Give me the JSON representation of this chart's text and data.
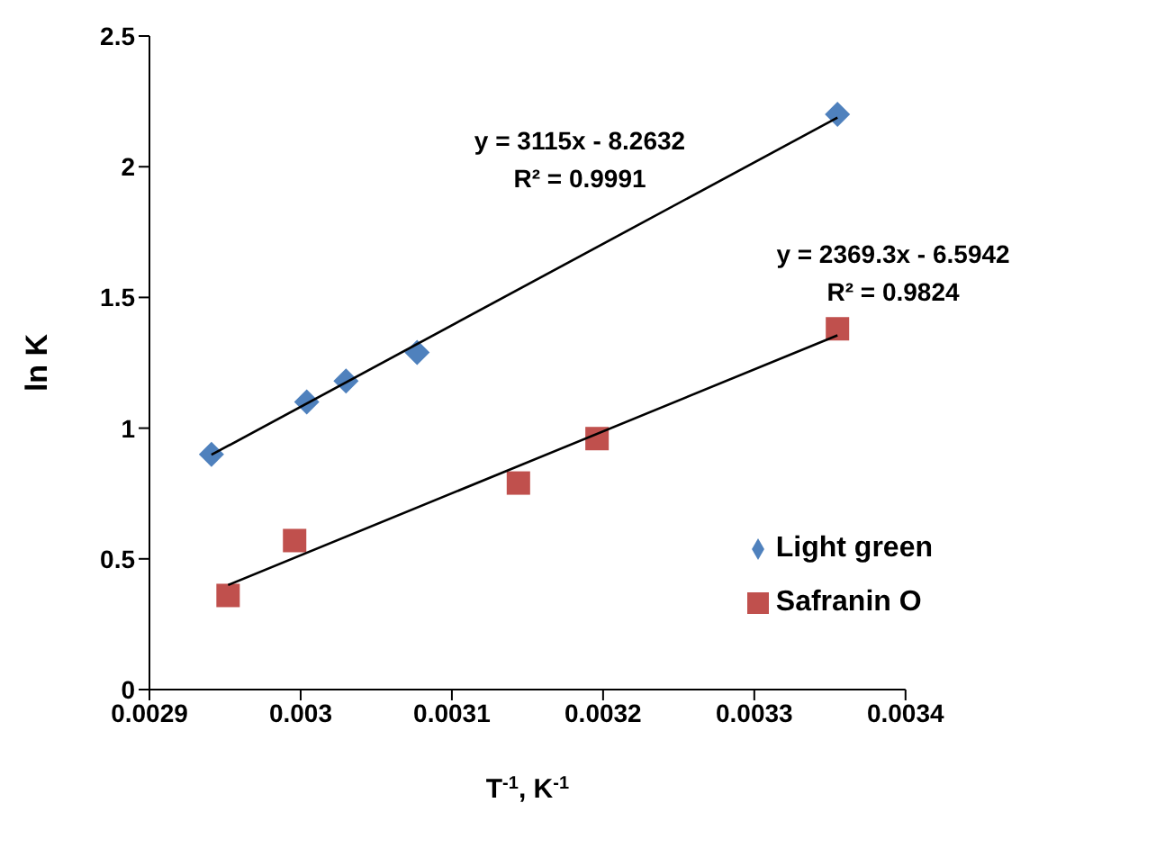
{
  "chart_data": {
    "type": "scatter",
    "xlabel": "T$^{-1}$, K$^{-1}$",
    "ylabel": "ln K",
    "xlim": [
      0.0029,
      0.0034
    ],
    "xticks": [
      0.0029,
      0.003,
      0.0031,
      0.0032,
      0.0033,
      0.0034
    ],
    "ylim": [
      0,
      2.5
    ],
    "yticks": [
      0,
      0.5,
      1,
      1.5,
      2,
      2.5
    ],
    "grid": false,
    "legend": "right",
    "series": [
      {
        "name": "Light green",
        "color": "#4f81bd",
        "marker": "diamond",
        "x": [
          0.002941,
          0.003004,
          0.00303,
          0.003077,
          0.003355
        ],
        "values": [
          0.9,
          1.1,
          1.18,
          1.29,
          2.2
        ]
      },
      {
        "name": "Safranin O",
        "color": "#c0504d",
        "marker": "square",
        "x": [
          0.002952,
          0.002996,
          0.003144,
          0.003196,
          0.003355
        ],
        "values": [
          0.36,
          0.57,
          0.79,
          0.96,
          1.38
        ]
      },
      {
        "type": "line",
        "color": "#000000",
        "marker": "none",
        "x": [
          0.002941,
          0.003355
        ],
        "values": [
          0.898,
          2.188
        ]
      },
      {
        "type": "line",
        "color": "#000000",
        "marker": "none",
        "x": [
          0.002952,
          0.003355
        ],
        "values": [
          0.4,
          1.355
        ]
      }
    ],
    "annotations": [
      "y = 3115x - 8.2632",
      "R² = 0.9991",
      "y = 2369.3x - 6.5942",
      "R² = 0.9824"
    ]
  }
}
